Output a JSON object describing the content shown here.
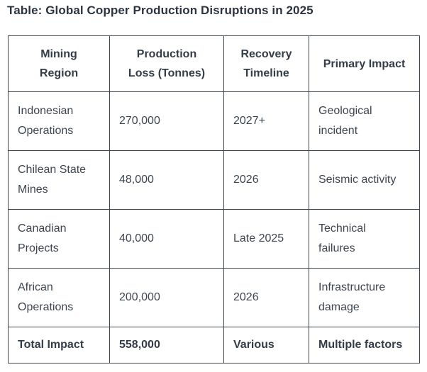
{
  "theme": {
    "border_color": "#40464d",
    "title_color": "#2b3542",
    "header_text_color": "#333d49",
    "body_text_color": "#3c4650",
    "page_bg": "#ffffff"
  },
  "title": "Table: Global Copper Production Disruptions in 2025",
  "table": {
    "columns": [
      {
        "label": "Mining\nRegion"
      },
      {
        "label": "Production\nLoss (Tonnes)"
      },
      {
        "label": "Recovery\nTimeline"
      },
      {
        "label": "Primary Impact"
      }
    ],
    "rows": [
      {
        "region": "Indonesian\nOperations",
        "loss": "270,000",
        "timeline": "2027+",
        "impact": "Geological\nincident"
      },
      {
        "region": "Chilean State\nMines",
        "loss": "48,000",
        "timeline": "2026",
        "impact": "Seismic activity"
      },
      {
        "region": "Canadian\nProjects",
        "loss": "40,000",
        "timeline": "Late 2025",
        "impact": "Technical\nfailures"
      },
      {
        "region": "African\nOperations",
        "loss": "200,000",
        "timeline": "2026",
        "impact": "Infrastructure\ndamage"
      }
    ],
    "total_row": {
      "region": "Total Impact",
      "loss": "558,000",
      "timeline": "Various",
      "impact": "Multiple factors"
    }
  }
}
